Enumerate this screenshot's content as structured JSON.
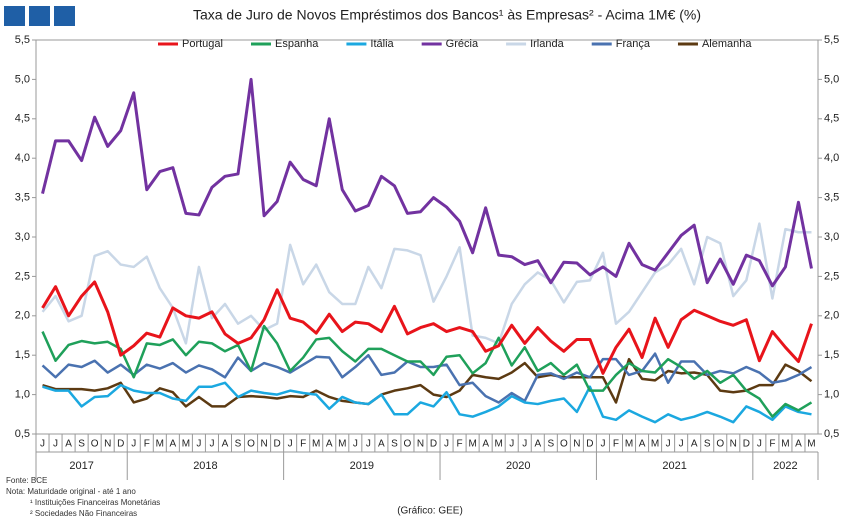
{
  "chart_data": {
    "type": "line",
    "title": "Taxa de Juro de Novos Empréstimos  dos Bancos¹ às Empresas² - Acima 1M€ (%)",
    "categories": [
      "J",
      "J",
      "A",
      "S",
      "O",
      "N",
      "D",
      "J",
      "F",
      "M",
      "A",
      "M",
      "J",
      "J",
      "A",
      "S",
      "O",
      "N",
      "D",
      "J",
      "F",
      "M",
      "A",
      "M",
      "J",
      "J",
      "A",
      "S",
      "O",
      "N",
      "D",
      "J",
      "F",
      "M",
      "A",
      "M",
      "J",
      "J",
      "A",
      "S",
      "O",
      "N",
      "D",
      "J",
      "F",
      "M",
      "A",
      "M",
      "J",
      "J",
      "A",
      "S",
      "O",
      "N",
      "D",
      "J",
      "F",
      "M",
      "A",
      "M"
    ],
    "years": [
      "2017",
      "2018",
      "2019",
      "2020",
      "2021",
      "2022"
    ],
    "legend": "top",
    "grid": false,
    "ylim": [
      0.5,
      5.5
    ],
    "yticks": [
      {
        "value": 0.5,
        "label": "0,5"
      },
      {
        "value": 1.0,
        "label": "1,0"
      },
      {
        "value": 1.5,
        "label": "1,5"
      },
      {
        "value": 2.0,
        "label": "2,0"
      },
      {
        "value": 2.5,
        "label": "2,5"
      },
      {
        "value": 3.0,
        "label": "3,0"
      },
      {
        "value": 3.5,
        "label": "3,5"
      },
      {
        "value": 4.0,
        "label": "4,0"
      },
      {
        "value": 4.5,
        "label": "4,5"
      },
      {
        "value": 5.0,
        "label": "5,0"
      },
      {
        "value": 5.5,
        "label": "5,5"
      }
    ],
    "y2lim": [
      0.5,
      5.5
    ],
    "y2ticks": [
      {
        "value": 0.5,
        "label": "0,5"
      },
      {
        "value": 1.0,
        "label": "1,0"
      },
      {
        "value": 1.5,
        "label": "1,5"
      },
      {
        "value": 2.0,
        "label": "2,0"
      },
      {
        "value": 2.5,
        "label": "2,5"
      },
      {
        "value": 3.0,
        "label": "3,0"
      },
      {
        "value": 3.5,
        "label": "3,5"
      },
      {
        "value": 4.0,
        "label": "4,0"
      },
      {
        "value": 4.5,
        "label": "4,5"
      },
      {
        "value": 5.0,
        "label": "5,0"
      },
      {
        "value": 5.5,
        "label": "5,5"
      }
    ],
    "series": [
      {
        "name": "Portugal",
        "color": "#e8141b",
        "values": [
          2.1,
          2.37,
          2.0,
          2.25,
          2.43,
          2.05,
          1.5,
          1.62,
          1.78,
          1.73,
          2.1,
          2.0,
          1.97,
          2.05,
          1.77,
          1.65,
          1.72,
          1.95,
          2.33,
          1.97,
          1.92,
          1.78,
          2.02,
          1.8,
          1.92,
          1.9,
          1.8,
          2.12,
          1.77,
          1.85,
          1.9,
          1.8,
          1.85,
          1.8,
          1.55,
          1.62,
          1.88,
          1.65,
          1.85,
          1.68,
          1.55,
          1.7,
          1.7,
          1.27,
          1.6,
          1.83,
          1.47,
          1.97,
          1.6,
          1.95,
          2.07,
          2.0,
          1.93,
          1.88,
          1.95,
          1.43,
          1.8,
          1.6,
          1.42,
          1.9
        ]
      },
      {
        "name": "Espanha",
        "color": "#1fa05a",
        "values": [
          1.8,
          1.43,
          1.63,
          1.68,
          1.65,
          1.67,
          1.58,
          1.22,
          1.65,
          1.63,
          1.7,
          1.5,
          1.67,
          1.65,
          1.55,
          1.63,
          1.3,
          1.87,
          1.65,
          1.3,
          1.47,
          1.7,
          1.72,
          1.55,
          1.42,
          1.58,
          1.58,
          1.5,
          1.42,
          1.42,
          1.25,
          1.48,
          1.5,
          1.27,
          1.4,
          1.72,
          1.37,
          1.6,
          1.3,
          1.4,
          1.25,
          1.38,
          1.05,
          1.05,
          1.25,
          1.4,
          1.3,
          1.28,
          1.45,
          1.35,
          1.2,
          1.3,
          1.15,
          1.25,
          1.05,
          0.95,
          0.72,
          0.88,
          0.8,
          0.9
        ]
      },
      {
        "name": "Itália",
        "color": "#1ba8e0",
        "values": [
          1.1,
          1.05,
          1.05,
          0.85,
          0.97,
          0.98,
          1.12,
          1.05,
          1.02,
          1.02,
          0.95,
          0.92,
          1.1,
          1.1,
          1.15,
          0.97,
          1.05,
          1.02,
          1.0,
          1.05,
          1.02,
          1.0,
          0.82,
          0.97,
          0.9,
          0.88,
          1.0,
          0.75,
          0.75,
          0.9,
          0.85,
          1.03,
          0.75,
          0.72,
          0.78,
          0.85,
          0.98,
          0.9,
          0.88,
          0.92,
          0.95,
          0.78,
          1.1,
          0.72,
          0.68,
          0.8,
          0.72,
          0.65,
          0.75,
          0.68,
          0.72,
          0.78,
          0.72,
          0.65,
          0.85,
          0.78,
          0.68,
          0.85,
          0.78,
          0.75
        ]
      },
      {
        "name": "Grécia",
        "color": "#7232a0",
        "values": [
          3.55,
          4.22,
          4.22,
          3.97,
          4.52,
          4.15,
          4.35,
          4.83,
          3.6,
          3.83,
          3.88,
          3.3,
          3.28,
          3.63,
          3.77,
          3.8,
          5.0,
          3.27,
          3.45,
          3.95,
          3.73,
          3.65,
          4.5,
          3.6,
          3.33,
          3.4,
          3.77,
          3.65,
          3.3,
          3.32,
          3.5,
          3.38,
          3.2,
          2.8,
          3.37,
          2.77,
          2.75,
          2.65,
          2.7,
          2.42,
          2.68,
          2.67,
          2.52,
          2.62,
          2.5,
          2.92,
          2.65,
          2.58,
          2.8,
          3.02,
          3.15,
          2.42,
          2.72,
          2.4,
          2.77,
          2.7,
          2.38,
          2.62,
          3.44,
          2.6
        ]
      },
      {
        "name": "Irlanda",
        "color": "#c9d7e7",
        "values": [
          2.05,
          2.25,
          1.93,
          2.0,
          2.76,
          2.82,
          2.65,
          2.62,
          2.75,
          2.35,
          2.1,
          1.65,
          2.62,
          1.97,
          2.15,
          1.9,
          2.0,
          1.82,
          1.9,
          2.9,
          2.4,
          2.65,
          2.3,
          2.15,
          2.15,
          2.62,
          2.35,
          2.85,
          2.83,
          2.77,
          2.18,
          2.5,
          2.87,
          1.75,
          1.72,
          1.65,
          2.15,
          2.4,
          2.55,
          2.45,
          2.17,
          2.43,
          2.45,
          2.8,
          1.9,
          2.05,
          2.3,
          2.55,
          2.65,
          2.85,
          2.4,
          3.0,
          2.92,
          2.25,
          2.45,
          3.17,
          2.22,
          3.1,
          3.06,
          3.06
        ]
      },
      {
        "name": "França",
        "color": "#4a72b0",
        "values": [
          1.37,
          1.22,
          1.38,
          1.35,
          1.43,
          1.28,
          1.38,
          1.25,
          1.38,
          1.33,
          1.4,
          1.28,
          1.37,
          1.32,
          1.22,
          1.47,
          1.3,
          1.4,
          1.35,
          1.28,
          1.38,
          1.48,
          1.47,
          1.22,
          1.35,
          1.5,
          1.25,
          1.28,
          1.42,
          1.35,
          1.35,
          1.38,
          1.12,
          1.15,
          0.98,
          0.9,
          1.02,
          0.92,
          1.25,
          1.27,
          1.2,
          1.28,
          1.22,
          1.45,
          1.45,
          1.25,
          1.3,
          1.52,
          1.15,
          1.42,
          1.42,
          1.25,
          1.3,
          1.27,
          1.35,
          1.28,
          1.15,
          1.18,
          1.25,
          1.35
        ]
      },
      {
        "name": "Alemanha",
        "color": "#5c3a12",
        "values": [
          1.12,
          1.07,
          1.07,
          1.07,
          1.05,
          1.08,
          1.15,
          0.9,
          0.95,
          1.08,
          1.03,
          0.85,
          0.97,
          0.85,
          0.85,
          0.97,
          0.98,
          0.97,
          0.95,
          0.98,
          0.97,
          1.05,
          0.97,
          0.92,
          0.9,
          0.88,
          1.0,
          1.05,
          1.08,
          1.12,
          1.0,
          0.97,
          1.05,
          1.25,
          1.22,
          1.2,
          1.28,
          1.4,
          1.22,
          1.25,
          1.22,
          1.22,
          1.22,
          1.22,
          0.9,
          1.45,
          1.2,
          1.18,
          1.3,
          1.27,
          1.28,
          1.25,
          1.05,
          1.03,
          1.05,
          1.12,
          1.12,
          1.38,
          1.3,
          1.17
        ]
      }
    ],
    "notes": [
      "Fonte: BCE",
      "Nota: Maturidade original - até 1 ano",
      "¹ Instituições Financeiras Monetárias",
      "² Sociedades Não Financeiras"
    ],
    "credit": "(Gráfico: GEE)"
  }
}
